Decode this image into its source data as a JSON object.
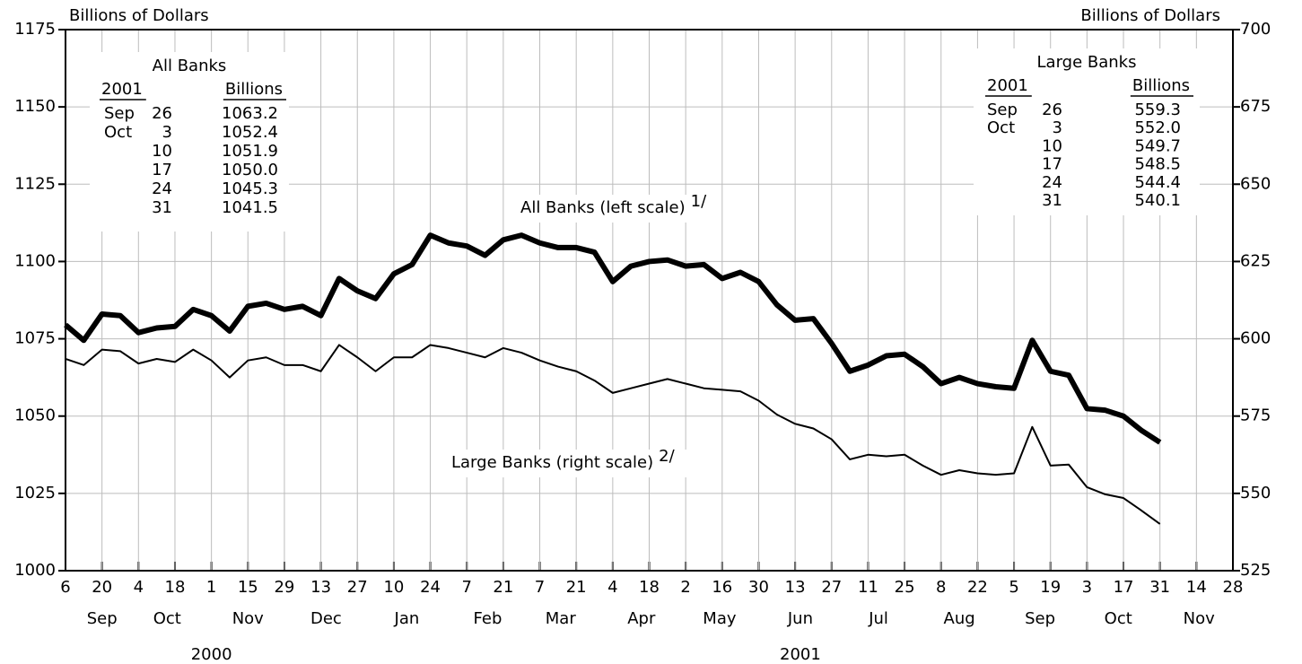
{
  "chart_data": {
    "type": "line",
    "y_label": "Billions of Dollars",
    "y2_label": "Billions of Dollars",
    "x": [
      "2000-09-06",
      "2000-09-13",
      "2000-09-20",
      "2000-09-27",
      "2000-10-04",
      "2000-10-11",
      "2000-10-18",
      "2000-10-25",
      "2000-11-01",
      "2000-11-08",
      "2000-11-15",
      "2000-11-22",
      "2000-11-29",
      "2000-12-06",
      "2000-12-13",
      "2000-12-20",
      "2000-12-27",
      "2001-01-03",
      "2001-01-10",
      "2001-01-17",
      "2001-01-24",
      "2001-01-31",
      "2001-02-07",
      "2001-02-14",
      "2001-02-21",
      "2001-02-28",
      "2001-03-07",
      "2001-03-14",
      "2001-03-21",
      "2001-03-28",
      "2001-04-04",
      "2001-04-11",
      "2001-04-18",
      "2001-04-25",
      "2001-05-02",
      "2001-05-09",
      "2001-05-16",
      "2001-05-23",
      "2001-05-30",
      "2001-06-06",
      "2001-06-13",
      "2001-06-20",
      "2001-06-27",
      "2001-07-04",
      "2001-07-11",
      "2001-07-18",
      "2001-07-25",
      "2001-08-01",
      "2001-08-08",
      "2001-08-15",
      "2001-08-22",
      "2001-08-29",
      "2001-09-05",
      "2001-09-12",
      "2001-09-19",
      "2001-09-26",
      "2001-10-03",
      "2001-10-10",
      "2001-10-17",
      "2001-10-24",
      "2001-10-31"
    ],
    "xlim": [
      "2000-09-06",
      "2001-11-28"
    ],
    "xticks": [
      {
        "value": "2000-09-06",
        "label": "6"
      },
      {
        "value": "2000-09-20",
        "label": "20"
      },
      {
        "value": "2000-10-04",
        "label": "4"
      },
      {
        "value": "2000-10-18",
        "label": "18"
      },
      {
        "value": "2000-11-01",
        "label": "1"
      },
      {
        "value": "2000-11-15",
        "label": "15"
      },
      {
        "value": "2000-11-29",
        "label": "29"
      },
      {
        "value": "2000-12-13",
        "label": "13"
      },
      {
        "value": "2000-12-27",
        "label": "27"
      },
      {
        "value": "2001-01-10",
        "label": "10"
      },
      {
        "value": "2001-01-24",
        "label": "24"
      },
      {
        "value": "2001-02-07",
        "label": "7"
      },
      {
        "value": "2001-02-21",
        "label": "21"
      },
      {
        "value": "2001-03-07",
        "label": "7"
      },
      {
        "value": "2001-03-21",
        "label": "21"
      },
      {
        "value": "2001-04-04",
        "label": "4"
      },
      {
        "value": "2001-04-18",
        "label": "18"
      },
      {
        "value": "2001-05-02",
        "label": "2"
      },
      {
        "value": "2001-05-16",
        "label": "16"
      },
      {
        "value": "2001-05-30",
        "label": "30"
      },
      {
        "value": "2001-06-13",
        "label": "13"
      },
      {
        "value": "2001-06-27",
        "label": "27"
      },
      {
        "value": "2001-07-11",
        "label": "11"
      },
      {
        "value": "2001-07-25",
        "label": "25"
      },
      {
        "value": "2001-08-08",
        "label": "8"
      },
      {
        "value": "2001-08-22",
        "label": "22"
      },
      {
        "value": "2001-09-05",
        "label": "5"
      },
      {
        "value": "2001-09-19",
        "label": "19"
      },
      {
        "value": "2001-10-03",
        "label": "3"
      },
      {
        "value": "2001-10-17",
        "label": "17"
      },
      {
        "value": "2001-10-31",
        "label": "31"
      },
      {
        "value": "2001-11-14",
        "label": "14"
      },
      {
        "value": "2001-11-28",
        "label": "28"
      }
    ],
    "months": [
      {
        "value": "2000-09-20",
        "label": "Sep"
      },
      {
        "value": "2000-10-15",
        "label": "Oct"
      },
      {
        "value": "2000-11-15",
        "label": "Nov"
      },
      {
        "value": "2000-12-15",
        "label": "Dec"
      },
      {
        "value": "2001-01-15",
        "label": "Jan"
      },
      {
        "value": "2001-02-15",
        "label": "Feb"
      },
      {
        "value": "2001-03-15",
        "label": "Mar"
      },
      {
        "value": "2001-04-15",
        "label": "Apr"
      },
      {
        "value": "2001-05-15",
        "label": "May"
      },
      {
        "value": "2001-06-15",
        "label": "Jun"
      },
      {
        "value": "2001-07-15",
        "label": "Jul"
      },
      {
        "value": "2001-08-15",
        "label": "Aug"
      },
      {
        "value": "2001-09-15",
        "label": "Sep"
      },
      {
        "value": "2001-10-15",
        "label": "Oct"
      },
      {
        "value": "2001-11-15",
        "label": "Nov"
      }
    ],
    "years": [
      {
        "value": "2000-11-01",
        "label": "2000"
      },
      {
        "value": "2001-06-15",
        "label": "2001"
      }
    ],
    "ylim": [
      1000,
      1175
    ],
    "yticks": [
      1000,
      1025,
      1050,
      1075,
      1100,
      1125,
      1150,
      1175
    ],
    "y2lim": [
      525,
      700
    ],
    "y2ticks": [
      525,
      550,
      575,
      600,
      625,
      650,
      675,
      700
    ],
    "grid": true,
    "series": [
      {
        "name": "All Banks (left scale)",
        "note": "1/",
        "color": "#000000",
        "values": [
          1079.5,
          1074.5,
          1083,
          1082.5,
          1077,
          1078.5,
          1079,
          1084.5,
          1082.5,
          1077.5,
          1085.5,
          1086.5,
          1084.5,
          1085.5,
          1082.5,
          1094.5,
          1090.5,
          1088,
          1096,
          1099,
          1108.5,
          1106,
          1105,
          1102,
          1107,
          1108.5,
          1106,
          1104.5,
          1104.5,
          1103,
          1093.5,
          1098.5,
          1100,
          1100.5,
          1098.5,
          1099,
          1094.5,
          1096.5,
          1093.5,
          1086,
          1081,
          1081.5,
          1073.5,
          1064.5,
          1066.5,
          1069.5,
          1070,
          1066,
          1060.5,
          1062.5,
          1060.5,
          1059.5,
          1059,
          1074.5,
          1064.5,
          1063.2,
          1052.4,
          1051.9,
          1050.0,
          1045.3,
          1041.5
        ]
      },
      {
        "name": "Large Banks (right scale)",
        "note": "2/",
        "color": "#000000",
        "axis": "y2",
        "values": [
          593.5,
          591.5,
          596.5,
          596,
          592,
          593.5,
          592.5,
          596.5,
          593,
          587.5,
          593,
          594,
          591.5,
          591.5,
          589.5,
          598,
          594,
          589.5,
          594,
          594,
          598,
          597,
          595.5,
          594,
          597,
          595.5,
          593,
          591,
          589.5,
          586.5,
          582.5,
          584,
          585.5,
          587,
          585.5,
          584,
          583.5,
          583,
          580,
          575.5,
          572.5,
          571,
          567.5,
          561,
          562.5,
          562,
          562.5,
          559,
          556,
          557.5,
          556.5,
          556,
          556.5,
          571.5,
          559,
          559.3,
          552.0,
          549.7,
          548.5,
          544.4,
          540.1
        ]
      }
    ],
    "insets": [
      {
        "title": "All Banks",
        "headers": [
          "2001",
          "Billions"
        ],
        "rows": [
          {
            "month": "Sep",
            "day": 26,
            "value": "1063.2"
          },
          {
            "month": "Oct",
            "day": 3,
            "value": "1052.4"
          },
          {
            "day": 10,
            "value": "1051.9"
          },
          {
            "day": 17,
            "value": "1050.0"
          },
          {
            "day": 24,
            "value": "1045.3"
          },
          {
            "day": 31,
            "value": "1041.5"
          }
        ]
      },
      {
        "title": "Large Banks",
        "headers": [
          "2001",
          "Billions"
        ],
        "rows": [
          {
            "month": "Sep",
            "day": 26,
            "value": "559.3"
          },
          {
            "month": "Oct",
            "day": 3,
            "value": "552.0"
          },
          {
            "day": 10,
            "value": "549.7"
          },
          {
            "day": 17,
            "value": "548.5"
          },
          {
            "day": 24,
            "value": "544.4"
          },
          {
            "day": 31,
            "value": "540.1"
          }
        ]
      }
    ]
  }
}
